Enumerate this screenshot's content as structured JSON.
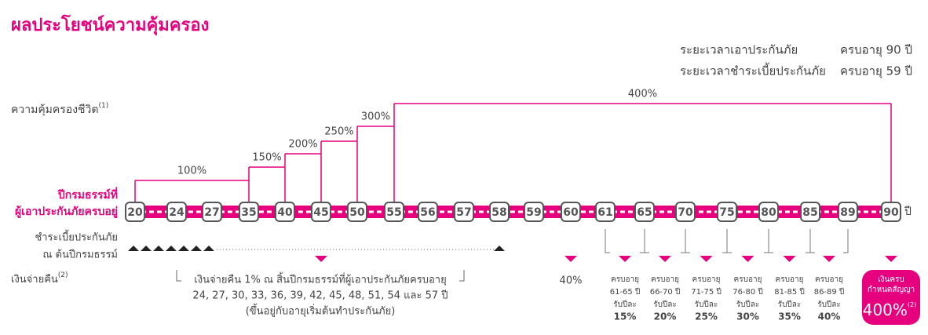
{
  "title": "ผลประโยชน์ความคุ้มครอง",
  "terms": [
    {
      "label": "ระยะเวลาเอาประกันภัย",
      "value": "ครบอายุ 90 ปี"
    },
    {
      "label": "ระยะเวลาชำระเบี้ยประกันภัย",
      "value": "ครบอายุ 59 ปี"
    }
  ],
  "coverage": {
    "label": "ความคุ้มครองชีวิต",
    "note": "(1)",
    "steps": [
      "100%",
      "150%",
      "200%",
      "250%",
      "300%",
      "400%"
    ]
  },
  "timeline": {
    "label_lines": [
      "ปีกรมธรรม์ที่",
      "ผู้เอาประกันภัยครบอยู่"
    ],
    "ages": [
      20,
      24,
      27,
      35,
      40,
      45,
      50,
      55,
      56,
      57,
      58,
      59,
      60,
      61,
      65,
      70,
      75,
      80,
      85,
      89,
      90
    ],
    "unit": "ปี"
  },
  "premium": {
    "label_lines": [
      "ชำระเบี้ยประกันภัย",
      "ณ ต้นปีกรมธรรม์"
    ]
  },
  "refund": {
    "label": "เงินจ่ายคืน",
    "note": "(2)",
    "annual_note": [
      "เงินจ่ายคืน 1% ณ สิ้นปีกรมธรรม์ที่ผู้เอาประกันภัยครบอายุ",
      "24, 27, 30, 33, 36, 39, 42, 45, 48, 51, 54 และ 57 ปี",
      "(ขึ้นอยู่กับอายุเริ่มต้นทำประกันภัย)"
    ],
    "at_60": "40%",
    "periods": [
      {
        "label": "ครบอายุ",
        "range": "61-65 ปี",
        "per_year": "รับปีละ",
        "rate": "15%"
      },
      {
        "label": "ครบอายุ",
        "range": "66-70 ปี",
        "per_year": "รับปีละ",
        "rate": "20%"
      },
      {
        "label": "ครบอายุ",
        "range": "71-75 ปี",
        "per_year": "รับปีละ",
        "rate": "25%"
      },
      {
        "label": "ครบอายุ",
        "range": "76-80 ปี",
        "per_year": "รับปีละ",
        "rate": "30%"
      },
      {
        "label": "ครบอายุ",
        "range": "81-85 ปี",
        "per_year": "รับปีละ",
        "rate": "35%"
      },
      {
        "label": "ครบอายุ",
        "range": "86-89 ปี",
        "per_year": "รับปีละ",
        "rate": "40%"
      }
    ],
    "maturity": {
      "lines": [
        "เงินครบ",
        "กำหนดสัญญา"
      ],
      "rate": "400%",
      "note": "(2)"
    }
  }
}
